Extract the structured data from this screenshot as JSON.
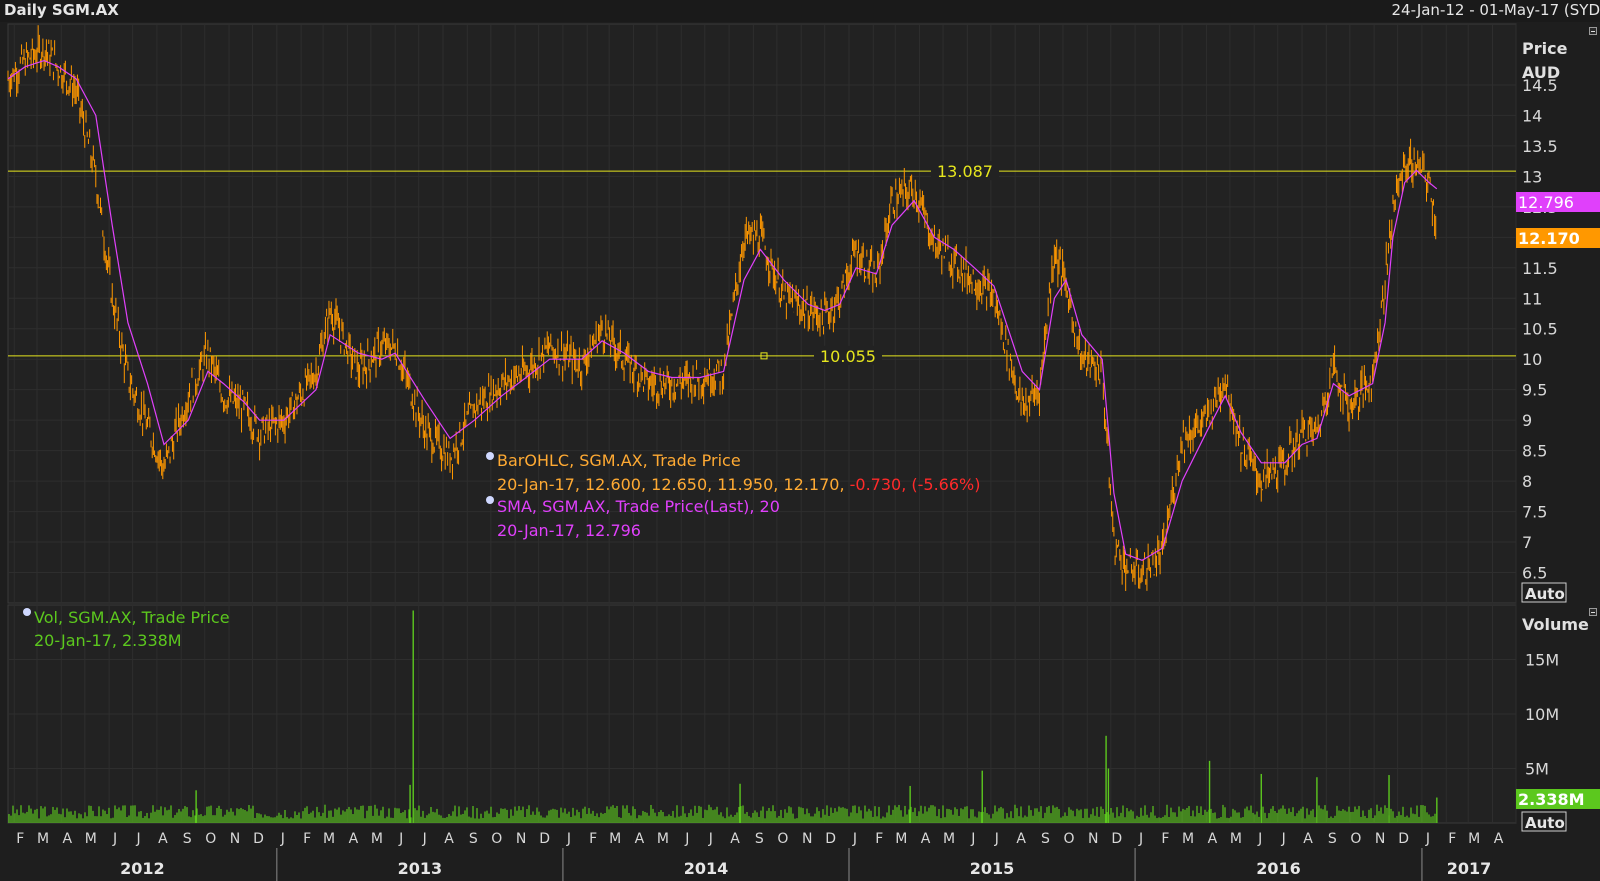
{
  "header": {
    "title": "Daily SGM.AX",
    "date_range": "24-Jan-12 - 01-May-17 (SYD"
  },
  "price_panel": {
    "axis_title_line1": "Price",
    "axis_title_line2": "AUD",
    "auto_label": "Auto",
    "current_sma_label": "12.796",
    "current_close_label": "12.170",
    "sma_color": "#e040fb",
    "close_color": "#ff9800",
    "hline_color": "#e6e61e",
    "legend": {
      "ohlc_title": "BarOHLC, SGM.AX, Trade Price",
      "ohlc_values": "20-Jan-17, 12.600, 12.650, 11.950, 12.170, ",
      "ohlc_change": "-0.730, (-5.66%)",
      "sma_title": "SMA, SGM.AX, Trade Price(Last),  20",
      "sma_values": "20-Jan-17, 12.796"
    }
  },
  "volume_panel": {
    "axis_title": "Volume",
    "auto_label": "Auto",
    "current_label": "2.338M",
    "bar_color": "#5cc81e",
    "legend_title": "Vol, SGM.AX, Trade Price",
    "legend_values": "20-Jan-17, 2.338M",
    "ticks": [
      {
        "value": 15000000,
        "label": "15M"
      },
      {
        "value": 10000000,
        "label": "10M"
      },
      {
        "value": 5000000,
        "label": "5M"
      }
    ]
  },
  "x_axis": {
    "months": [
      "F",
      "M",
      "A",
      "M",
      "J",
      "J",
      "A",
      "S",
      "O",
      "N",
      "D",
      "J",
      "F",
      "M",
      "A",
      "M",
      "J",
      "J",
      "A",
      "S",
      "O",
      "N",
      "D",
      "J",
      "F",
      "M",
      "A",
      "M",
      "J",
      "J",
      "A",
      "S",
      "O",
      "N",
      "D",
      "J",
      "F",
      "M",
      "A",
      "M",
      "J",
      "J",
      "A",
      "S",
      "O",
      "N",
      "D",
      "J",
      "F",
      "M",
      "A",
      "M",
      "J",
      "J",
      "A",
      "S",
      "O",
      "N",
      "D",
      "J",
      "F",
      "M",
      "A"
    ],
    "years": [
      "2012",
      "2013",
      "2014",
      "2015",
      "2016",
      "2017"
    ]
  },
  "chart_data": [
    {
      "type": "line",
      "title": "Daily SGM.AX",
      "ylabel": "Price AUD",
      "ylim": [
        6,
        15.5
      ],
      "yticks": [
        6.5,
        7,
        7.5,
        8,
        8.5,
        9,
        9.5,
        10,
        10.5,
        11,
        11.5,
        12,
        12.5,
        13,
        13.5,
        14,
        14.5
      ],
      "x_range": [
        "2012-01-24",
        "2017-05-01"
      ],
      "horizontal_lines": [
        {
          "value": 13.087,
          "label": "13.087"
        },
        {
          "value": 10.055,
          "label": "10.055"
        }
      ],
      "x": [
        "2012-01-24",
        "2012-02-15",
        "2012-03-10",
        "2012-03-28",
        "2012-04-20",
        "2012-05-15",
        "2012-06-05",
        "2012-06-25",
        "2012-07-20",
        "2012-08-10",
        "2012-09-10",
        "2012-10-05",
        "2012-10-25",
        "2012-11-20",
        "2012-12-10",
        "2013-01-10",
        "2013-02-20",
        "2013-03-10",
        "2013-04-15",
        "2013-05-15",
        "2013-06-01",
        "2013-07-10",
        "2013-08-10",
        "2013-09-10",
        "2013-10-15",
        "2013-11-15",
        "2013-12-15",
        "2014-01-25",
        "2014-02-20",
        "2014-03-20",
        "2014-04-20",
        "2014-05-20",
        "2014-06-25",
        "2014-07-25",
        "2014-08-20",
        "2014-09-10",
        "2014-10-10",
        "2014-11-10",
        "2014-12-01",
        "2014-12-20",
        "2015-01-10",
        "2015-02-05",
        "2015-02-25",
        "2015-03-25",
        "2015-04-20",
        "2015-05-15",
        "2015-06-10",
        "2015-07-05",
        "2015-08-10",
        "2015-09-01",
        "2015-09-20",
        "2015-10-05",
        "2015-10-25",
        "2015-11-20",
        "2015-12-05",
        "2015-12-20",
        "2016-01-10",
        "2016-02-05",
        "2016-03-01",
        "2016-04-01",
        "2016-04-25",
        "2016-05-15",
        "2016-06-10",
        "2016-07-10",
        "2016-08-01",
        "2016-08-20",
        "2016-09-10",
        "2016-09-30",
        "2016-10-30",
        "2016-11-15",
        "2016-11-25",
        "2016-12-10",
        "2016-12-25",
        "2017-01-10",
        "2017-01-20"
      ],
      "series": [
        {
          "name": "BarOHLC, SGM.AX, Trade Price",
          "values": [
            14.6,
            14.9,
            15.1,
            14.8,
            14.4,
            13.0,
            11.0,
            9.7,
            8.9,
            8.2,
            9.4,
            10.1,
            9.4,
            9.2,
            8.8,
            9.0,
            9.8,
            10.8,
            9.8,
            10.2,
            10.2,
            8.8,
            8.4,
            9.2,
            9.6,
            9.8,
            10.2,
            9.9,
            10.5,
            10.0,
            9.6,
            9.6,
            9.7,
            9.8,
            12.0,
            12.0,
            11.0,
            10.8,
            10.7,
            11.0,
            11.8,
            11.3,
            12.6,
            12.8,
            11.9,
            11.6,
            11.3,
            11.0,
            9.2,
            9.5,
            11.8,
            11.2,
            10.0,
            9.8,
            7.0,
            6.6,
            6.5,
            6.8,
            8.7,
            9.0,
            9.7,
            8.6,
            8.0,
            8.3,
            8.8,
            8.8,
            9.9,
            9.2,
            9.7,
            11.3,
            12.5,
            13.2,
            13.2,
            12.9,
            12.17
          ]
        },
        {
          "name": "SMA, SGM.AX, Trade Price(Last),  20",
          "values": [
            14.6,
            14.8,
            14.9,
            14.8,
            14.6,
            14.0,
            12.2,
            10.6,
            9.6,
            8.6,
            9.0,
            9.8,
            9.6,
            9.3,
            9.0,
            9.0,
            9.5,
            10.4,
            10.1,
            10.0,
            10.1,
            9.3,
            8.7,
            9.0,
            9.4,
            9.7,
            10.0,
            10.0,
            10.3,
            10.1,
            9.8,
            9.7,
            9.7,
            9.8,
            11.3,
            11.8,
            11.3,
            10.9,
            10.8,
            10.9,
            11.5,
            11.4,
            12.2,
            12.6,
            12.0,
            11.8,
            11.5,
            11.2,
            9.8,
            9.5,
            11.0,
            11.3,
            10.4,
            10.0,
            7.8,
            6.8,
            6.7,
            6.9,
            8.0,
            8.8,
            9.4,
            8.8,
            8.3,
            8.3,
            8.6,
            8.7,
            9.6,
            9.4,
            9.6,
            10.6,
            12.0,
            12.9,
            13.1,
            12.9,
            12.796
          ]
        }
      ]
    },
    {
      "type": "bar",
      "title": "Vol, SGM.AX, Trade Price",
      "ylabel": "Volume",
      "ylim": [
        0,
        20000000
      ],
      "x_range": [
        "2012-01-24",
        "2017-05-01"
      ],
      "baseline": 800000,
      "spikes": [
        {
          "x": "2012-09-20",
          "value": 3000000
        },
        {
          "x": "2013-06-20",
          "value": 3500000
        },
        {
          "x": "2013-06-24",
          "value": 19500000
        },
        {
          "x": "2014-08-15",
          "value": 3600000
        },
        {
          "x": "2015-03-20",
          "value": 3400000
        },
        {
          "x": "2015-06-20",
          "value": 4800000
        },
        {
          "x": "2015-11-25",
          "value": 8000000
        },
        {
          "x": "2015-11-28",
          "value": 5000000
        },
        {
          "x": "2016-04-05",
          "value": 5700000
        },
        {
          "x": "2016-06-10",
          "value": 4500000
        },
        {
          "x": "2016-08-20",
          "value": 4200000
        },
        {
          "x": "2016-11-20",
          "value": 4400000
        },
        {
          "x": "2017-01-20",
          "value": 2338000
        }
      ]
    }
  ]
}
